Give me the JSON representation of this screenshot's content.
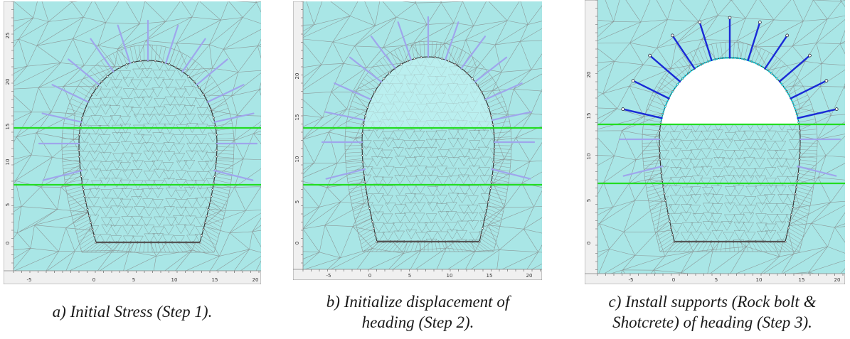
{
  "colors": {
    "rock": "#a9e6e6",
    "mesh": "#8c9a9a",
    "tunnel_mesh": "#7f8f8f",
    "layer_line": "#22dd22",
    "bolt_pending": "#9fa6ec",
    "bolt_installed": "#1a2ad6",
    "excavated": "#ffffff",
    "heading_highlight": "#c8f6f6",
    "frame": "#888888",
    "ruler_bg": "#f0f0f0"
  },
  "panels": [
    {
      "id": "a",
      "caption_lines": [
        "a) Initial Stress (Step 1)."
      ],
      "x_ticks": [
        "-5",
        "0",
        "5",
        "10",
        "15",
        "20"
      ],
      "y_ticks": [
        "25",
        "20",
        "15",
        "10",
        "5",
        "0"
      ],
      "bolt_state": "pending",
      "heading_state": "intact"
    },
    {
      "id": "b",
      "caption_lines": [
        "b) Initialize displacement of",
        "heading (Step 2)."
      ],
      "x_ticks": [
        "-5",
        "0",
        "5",
        "10",
        "15",
        "20"
      ],
      "y_ticks": [
        "20",
        "15",
        "10",
        "5",
        "0"
      ],
      "bolt_state": "pending",
      "heading_state": "relaxed"
    },
    {
      "id": "c",
      "caption_lines": [
        "c) Install supports (Rock bolt &",
        "Shotcrete) of heading (Step 3)."
      ],
      "x_ticks": [
        "-5",
        "0",
        "5",
        "10",
        "15",
        "20"
      ],
      "y_ticks": [
        "20",
        "15",
        "10",
        "5",
        "0"
      ],
      "bolt_state": "installed",
      "heading_state": "excavated"
    }
  ]
}
